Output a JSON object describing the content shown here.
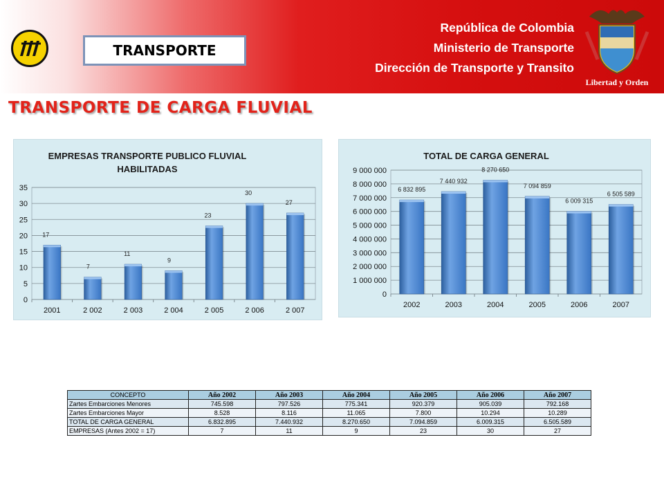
{
  "header": {
    "tag_label": "TRANSPORTE",
    "gov_lines": [
      "República de Colombia",
      "Ministerio de Transporte",
      "Dirección de Transporte y Transito"
    ],
    "motto": "Libertad y Orden"
  },
  "page_title": "TRANSPORTE DE CARGA FLUVIAL",
  "colors": {
    "bar": "#3a76c4",
    "bar_light": "#6fa3e3",
    "panel": "#d8ecf2",
    "title_red": "#e2231a"
  },
  "chart_data": [
    {
      "type": "bar",
      "title": "EMPRESAS TRANSPORTE PUBLICO FLUVIAL HABILITADAS",
      "title_lines": [
        "EMPRESAS TRANSPORTE PUBLICO FLUVIAL",
        "HABILITADAS"
      ],
      "categories": [
        "2001",
        "2 002",
        "2 003",
        "2 004",
        "2 005",
        "2 006",
        "2 007"
      ],
      "values": [
        17,
        7,
        11,
        9,
        23,
        30,
        27
      ],
      "data_labels": [
        "17",
        "7",
        "11",
        "9",
        "23",
        "30",
        "27"
      ],
      "ylim": [
        0,
        35
      ],
      "yticks": [
        0,
        5,
        10,
        15,
        20,
        25,
        30,
        35
      ],
      "ytick_labels": [
        "0",
        "5",
        "10",
        "15",
        "20",
        "25",
        "30",
        "35"
      ],
      "grid": true
    },
    {
      "type": "bar",
      "title": "TOTAL DE CARGA GENERAL",
      "categories": [
        "2002",
        "2003",
        "2004",
        "2005",
        "2006",
        "2007"
      ],
      "values": [
        6832895,
        7440932,
        8270650,
        7094859,
        6009315,
        6505589
      ],
      "data_labels": [
        "6 832 895",
        "7 440 932",
        "8 270 650",
        "7 094 859",
        "6 009 315",
        "6 505 589"
      ],
      "ylim": [
        0,
        9000000
      ],
      "yticks": [
        0,
        1000000,
        2000000,
        3000000,
        4000000,
        5000000,
        6000000,
        7000000,
        8000000,
        9000000
      ],
      "ytick_labels": [
        "0",
        "1 000 000",
        "2 000 000",
        "3 000 000",
        "4 000 000",
        "5 000 000",
        "6 000 000",
        "7 000 000",
        "8 000 000",
        "9 000 000"
      ],
      "grid": true
    }
  ],
  "table": {
    "headers": [
      "CONCEPTO",
      "Año 2002",
      "Año 2003",
      "Año 2004",
      "Año 2005",
      "Año 2006",
      "Año 2007"
    ],
    "rows": [
      [
        "Zartes Embarciones Menores",
        "745.598",
        "797.526",
        "775.341",
        "920.379",
        "905.039",
        "792.168"
      ],
      [
        "Zartes Embarciones Mayor",
        "8.528",
        "8.116",
        "11.065",
        "7.800",
        "10.294",
        "10.289"
      ],
      [
        "TOTAL DE CARGA GENERAL",
        "6.832.895",
        "7.440.932",
        "8.270.650",
        "7.094.859",
        "6.009.315",
        "6.505.589"
      ],
      [
        "EMPRESAS (Antes 2002 = 17)",
        "7",
        "11",
        "9",
        "23",
        "30",
        "27"
      ]
    ]
  }
}
